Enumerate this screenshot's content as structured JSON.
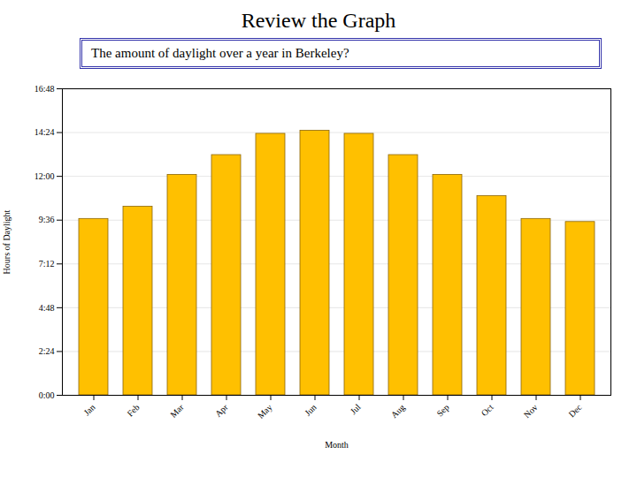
{
  "chart_data": {
    "type": "bar",
    "title": "Review the Graph",
    "subtitle": "The amount of daylight over a year in Berkeley?",
    "xlabel": "Month",
    "ylabel": "Hours of Daylight",
    "categories": [
      "Jan",
      "Feb",
      "Mar",
      "Apr",
      "May",
      "Jun",
      "Jul",
      "Aug",
      "Sep",
      "Oct",
      "Nov",
      "Dec"
    ],
    "values": [
      9.667,
      10.333,
      12.083,
      13.167,
      14.333,
      14.5,
      14.333,
      13.167,
      12.083,
      10.917,
      9.667,
      9.5
    ],
    "color": "#FFC000",
    "ylim": [
      0,
      16.8
    ],
    "yticks": [
      {
        "value": 0,
        "label": "0:00"
      },
      {
        "value": 2.4,
        "label": "2:24"
      },
      {
        "value": 4.8,
        "label": "4:48"
      },
      {
        "value": 7.2,
        "label": "7:12"
      },
      {
        "value": 9.6,
        "label": "9:36"
      },
      {
        "value": 12,
        "label": "12:00"
      },
      {
        "value": 14.4,
        "label": "14:24"
      },
      {
        "value": 16.8,
        "label": "16:48"
      }
    ],
    "grid": true
  }
}
